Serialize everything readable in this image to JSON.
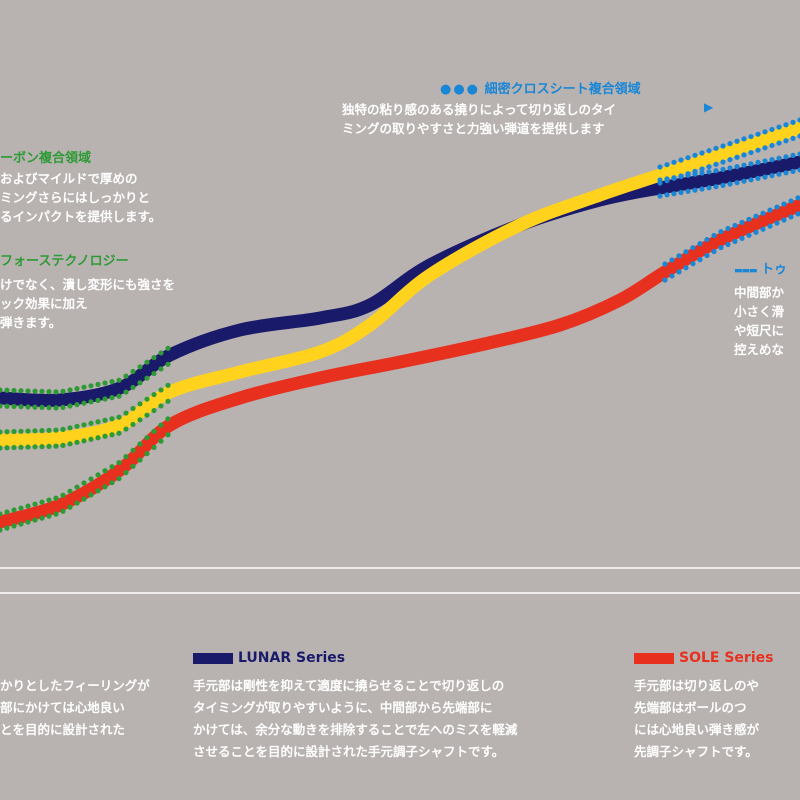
{
  "colors": {
    "background": "#b8b3b1",
    "lunar": "#1a1a6b",
    "yellow": "#ffd21e",
    "sole": "#e8301f",
    "green_overlay": "#2e9a35",
    "blue_overlay": "#1a86d6"
  },
  "annotations": {
    "cross_sheet": {
      "marker": "●●●",
      "title": "細密クロスシート複合領域",
      "arrow": "▶",
      "lines": [
        "独特の粘り感のある撓りによって切り返しのタイ",
        "ミングの取りやすさと力強い弾道を提供します"
      ]
    },
    "carbon": {
      "title": "ーボン複合領域",
      "lines": [
        "およびマイルドで厚めの",
        "ミングさらにはしっかりと",
        "るインパクトを提供します。"
      ]
    },
    "force_tech": {
      "title": "フォーステクノロジー",
      "lines": [
        "けでなく、潰し変形にも強さを",
        "ック効果に加え",
        "弾きます。"
      ]
    },
    "toe": {
      "marker": "▬▬▬",
      "title": "トゥ",
      "lines": [
        "中間部か",
        "小さく滑",
        "や短尺に",
        "控えめな"
      ]
    }
  },
  "legend": {
    "left_fragment": [
      "かりとしたフィーリングが",
      "部にかけては心地良い",
      "とを目的に設計された"
    ],
    "lunar": {
      "label": "LUNAR Series",
      "lines": [
        "手元部は剛性を抑えて適度に撓らせることで切り返しの",
        "タイミングが取りやすいように、中間部から先端部に",
        "かけては、余分な動きを排除することで左へのミスを軽減",
        "させることを目的に設計された手元調子シャフトです。"
      ]
    },
    "sole": {
      "label": "SOLE Series",
      "lines": [
        "手元部は切り返しのや",
        "先端部はボールのつ",
        "には心地良い弾き感が",
        "先調子シャフトです。"
      ]
    }
  },
  "chart_data": {
    "type": "line",
    "title": "",
    "xlabel": "",
    "ylabel": "",
    "grid": false,
    "series": [
      {
        "name": "LUNAR Series",
        "color": "#1a1a6b",
        "points": [
          [
            0,
            398
          ],
          [
            60,
            400
          ],
          [
            120,
            388
          ],
          [
            170,
            355
          ],
          [
            240,
            330
          ],
          [
            320,
            318
          ],
          [
            370,
            305
          ],
          [
            430,
            265
          ],
          [
            520,
            225
          ],
          [
            600,
            200
          ],
          [
            660,
            188
          ],
          [
            720,
            178
          ],
          [
            800,
            162
          ]
        ]
      },
      {
        "color": "#ffd21e",
        "points": [
          [
            0,
            440
          ],
          [
            60,
            438
          ],
          [
            120,
            425
          ],
          [
            170,
            392
          ],
          [
            240,
            372
          ],
          [
            320,
            352
          ],
          [
            370,
            325
          ],
          [
            430,
            275
          ],
          [
            520,
            225
          ],
          [
            600,
            195
          ],
          [
            660,
            175
          ],
          [
            720,
            155
          ],
          [
            800,
            128
          ]
        ]
      },
      {
        "name": "SOLE Series",
        "color": "#e8301f",
        "points": [
          [
            0,
            522
          ],
          [
            60,
            505
          ],
          [
            120,
            470
          ],
          [
            170,
            425
          ],
          [
            240,
            398
          ],
          [
            320,
            378
          ],
          [
            400,
            362
          ],
          [
            480,
            345
          ],
          [
            560,
            325
          ],
          [
            620,
            300
          ],
          [
            665,
            272
          ],
          [
            720,
            240
          ],
          [
            800,
            205
          ]
        ]
      }
    ],
    "overlays": [
      {
        "series": 0,
        "style": "green-dots",
        "from": 0,
        "to": 170
      },
      {
        "series": 1,
        "style": "green-dots",
        "from": 0,
        "to": 170
      },
      {
        "series": 2,
        "style": "green-dots",
        "from": 0,
        "to": 170
      },
      {
        "series": 0,
        "style": "blue-dots",
        "from": 660,
        "to": 800
      },
      {
        "series": 1,
        "style": "blue-dots",
        "from": 660,
        "to": 800
      },
      {
        "series": 2,
        "style": "blue-dots",
        "from": 665,
        "to": 800
      }
    ]
  }
}
